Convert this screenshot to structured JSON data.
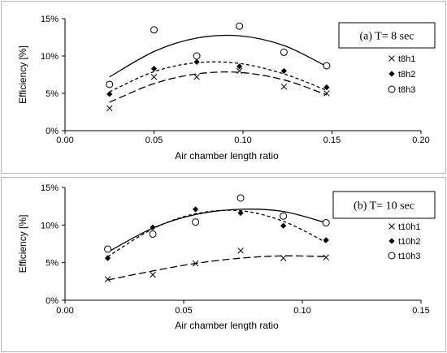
{
  "chart_data": [
    {
      "type": "scatter",
      "panel_label": "(a)  T= 8 sec",
      "xlabel": "Air chamber length ratio",
      "ylabel": "Efficiency [%]",
      "xlim": [
        0,
        0.2
      ],
      "ylim": [
        0,
        15
      ],
      "x_ticks": [
        "0.00",
        "0.05",
        "0.10",
        "0.15",
        "0.20"
      ],
      "y_ticks": [
        "0%",
        "5%",
        "10%",
        "15%"
      ],
      "x_tick_values": [
        0,
        0.05,
        0.1,
        0.15,
        0.2
      ],
      "y_tick_values": [
        0,
        5,
        10,
        15
      ],
      "grid": false,
      "legend_position": "right",
      "series": [
        {
          "name": "t8h1",
          "marker": "cross",
          "points": [
            [
              0.025,
              3.0
            ],
            [
              0.05,
              7.2
            ],
            [
              0.074,
              7.2
            ],
            [
              0.098,
              8.0
            ],
            [
              0.123,
              5.9
            ],
            [
              0.147,
              5.0
            ]
          ],
          "trend": [
            [
              0.025,
              3.8
            ],
            [
              0.05,
              6.3
            ],
            [
              0.074,
              7.6
            ],
            [
              0.098,
              7.8
            ],
            [
              0.123,
              6.8
            ],
            [
              0.147,
              4.8
            ]
          ],
          "trend_style": "long-dash"
        },
        {
          "name": "t8h2",
          "marker": "diamond",
          "points": [
            [
              0.025,
              4.9
            ],
            [
              0.05,
              8.3
            ],
            [
              0.074,
              9.2
            ],
            [
              0.098,
              8.6
            ],
            [
              0.123,
              8.0
            ],
            [
              0.147,
              5.8
            ]
          ],
          "trend": [
            [
              0.025,
              5.2
            ],
            [
              0.05,
              7.9
            ],
            [
              0.074,
              9.1
            ],
            [
              0.098,
              9.0
            ],
            [
              0.123,
              7.6
            ],
            [
              0.147,
              5.4
            ]
          ],
          "trend_style": "short-dash"
        },
        {
          "name": "t8h3",
          "marker": "circle",
          "points": [
            [
              0.025,
              6.2
            ],
            [
              0.05,
              13.5
            ],
            [
              0.074,
              10.0
            ],
            [
              0.098,
              14.0
            ],
            [
              0.123,
              10.5
            ],
            [
              0.147,
              8.7
            ]
          ],
          "trend": [
            [
              0.025,
              7.2
            ],
            [
              0.05,
              10.6
            ],
            [
              0.074,
              12.4
            ],
            [
              0.098,
              12.7
            ],
            [
              0.123,
              11.4
            ],
            [
              0.147,
              8.6
            ]
          ],
          "trend_style": "solid"
        }
      ]
    },
    {
      "type": "scatter",
      "panel_label": "(b) T= 10 sec",
      "xlabel": "Air chamber length ratio",
      "ylabel": "Efficiency [%]",
      "xlim": [
        0,
        0.15
      ],
      "ylim": [
        0,
        15
      ],
      "x_ticks": [
        "0.00",
        "0.05",
        "0.10",
        "0.15"
      ],
      "y_ticks": [
        "0%",
        "5%",
        "10%",
        "15%"
      ],
      "x_tick_values": [
        0,
        0.05,
        0.1,
        0.15
      ],
      "y_tick_values": [
        0,
        5,
        10,
        15
      ],
      "grid": false,
      "legend_position": "right",
      "series": [
        {
          "name": "t10h1",
          "marker": "cross",
          "points": [
            [
              0.018,
              2.8
            ],
            [
              0.037,
              3.4
            ],
            [
              0.055,
              4.9
            ],
            [
              0.074,
              6.6
            ],
            [
              0.092,
              5.6
            ],
            [
              0.11,
              5.7
            ]
          ],
          "trend": [
            [
              0.018,
              2.7
            ],
            [
              0.037,
              3.9
            ],
            [
              0.055,
              4.9
            ],
            [
              0.074,
              5.6
            ],
            [
              0.092,
              5.9
            ],
            [
              0.11,
              5.8
            ]
          ],
          "trend_style": "long-dash"
        },
        {
          "name": "t10h2",
          "marker": "diamond",
          "points": [
            [
              0.018,
              5.6
            ],
            [
              0.037,
              9.7
            ],
            [
              0.055,
              12.1
            ],
            [
              0.074,
              11.6
            ],
            [
              0.092,
              9.9
            ],
            [
              0.11,
              8.0
            ]
          ],
          "trend": [
            [
              0.018,
              5.8
            ],
            [
              0.037,
              9.5
            ],
            [
              0.055,
              11.5
            ],
            [
              0.074,
              11.9
            ],
            [
              0.092,
              10.5
            ],
            [
              0.11,
              7.7
            ]
          ],
          "trend_style": "short-dash"
        },
        {
          "name": "t10h3",
          "marker": "circle",
          "points": [
            [
              0.018,
              6.8
            ],
            [
              0.037,
              8.8
            ],
            [
              0.055,
              10.4
            ],
            [
              0.074,
              13.6
            ],
            [
              0.092,
              11.2
            ],
            [
              0.11,
              10.3
            ]
          ],
          "trend": [
            [
              0.018,
              6.4
            ],
            [
              0.037,
              9.6
            ],
            [
              0.055,
              11.4
            ],
            [
              0.074,
              12.1
            ],
            [
              0.092,
              11.8
            ],
            [
              0.11,
              10.3
            ]
          ],
          "trend_style": "solid"
        }
      ]
    }
  ]
}
